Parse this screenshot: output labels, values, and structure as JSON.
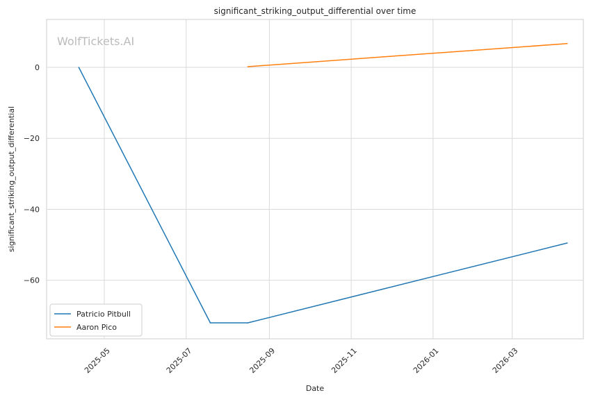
{
  "chart_data": {
    "type": "line",
    "title": "significant_striking_output_differential over time",
    "xlabel": "Date",
    "ylabel": "significant_striking_output_differential",
    "watermark": "WolfTickets.AI",
    "x_ticks": [
      "2025-05",
      "2025-07",
      "2025-09",
      "2025-11",
      "2026-01",
      "2026-03"
    ],
    "y_ticks": [
      0,
      -20,
      -40,
      -60
    ],
    "y_tick_labels": [
      "0",
      "−20",
      "−40",
      "−60"
    ],
    "ylim": [
      -76.5,
      13.5
    ],
    "xlim": [
      "2025-03-19",
      "2026-04-23"
    ],
    "grid": true,
    "legend_position": "lower-left",
    "series": [
      {
        "name": "Patricio Pitbull",
        "color": "#1f77b4",
        "x": [
          "2025-04-12",
          "2025-07-19",
          "2025-08-16",
          "2026-04-11"
        ],
        "y": [
          0,
          -72,
          -72,
          -49.5
        ]
      },
      {
        "name": "Aaron Pico",
        "color": "#ff7f0e",
        "x": [
          "2025-08-16",
          "2026-04-11"
        ],
        "y": [
          0.2,
          6.7
        ]
      }
    ]
  }
}
